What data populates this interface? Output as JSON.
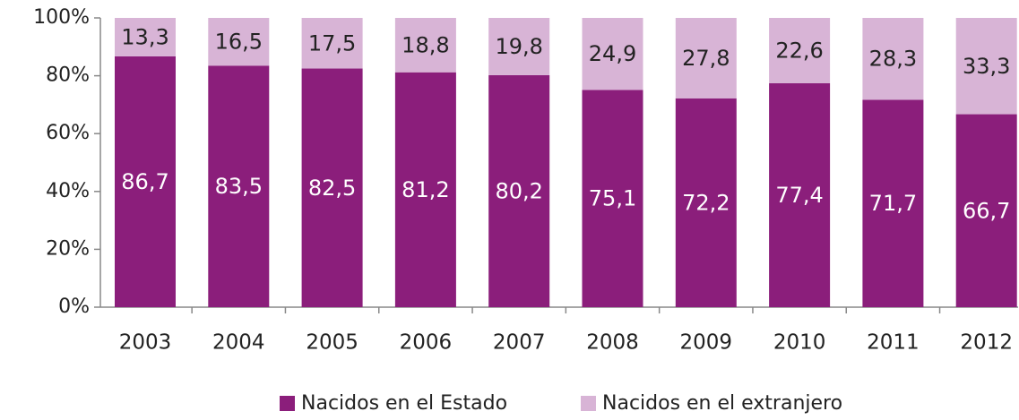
{
  "chart_data": {
    "type": "stacked_bar",
    "categories": [
      "2003",
      "2004",
      "2005",
      "2006",
      "2007",
      "2008",
      "2009",
      "2010",
      "2011",
      "2012"
    ],
    "series": [
      {
        "name": "Nacidos en el Estado",
        "color": "#8b1e7b",
        "values": [
          86.7,
          83.5,
          82.5,
          81.2,
          80.2,
          75.1,
          72.2,
          77.4,
          71.7,
          66.7
        ],
        "value_labels": [
          "86,7",
          "83,5",
          "82,5",
          "81,2",
          "80,2",
          "75,1",
          "72,2",
          "77,4",
          "71,7",
          "66,7"
        ]
      },
      {
        "name": "Nacidos en el extranjero",
        "color": "#d8b4d6",
        "values": [
          13.3,
          16.5,
          17.5,
          18.8,
          19.8,
          24.9,
          27.8,
          22.6,
          28.3,
          33.3
        ],
        "value_labels": [
          "13,3",
          "16,5",
          "17,5",
          "18,8",
          "19,8",
          "24,9",
          "27,8",
          "22,6",
          "28,3",
          "33,3"
        ]
      }
    ],
    "ylim": [
      0,
      100
    ],
    "yticks": [
      {
        "value": 0,
        "label": "0%"
      },
      {
        "value": 20,
        "label": "20%"
      },
      {
        "value": 40,
        "label": "40%"
      },
      {
        "value": 60,
        "label": "60%"
      },
      {
        "value": 80,
        "label": "80%"
      },
      {
        "value": 100,
        "label": "100%"
      }
    ],
    "legend": "bottom"
  }
}
